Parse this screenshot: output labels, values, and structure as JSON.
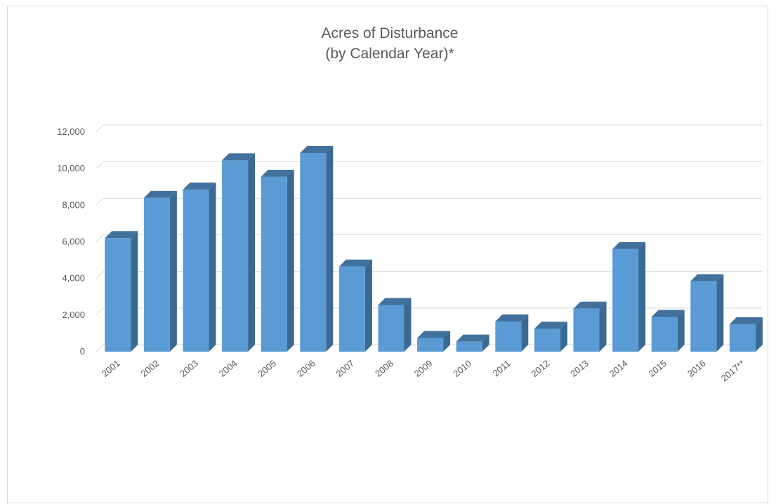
{
  "chart_data": {
    "type": "bar",
    "title": [
      "Acres of Disturbance",
      "(by Calendar Year)*"
    ],
    "categories": [
      "2001",
      "2002",
      "2003",
      "2004",
      "2005",
      "2006",
      "2007",
      "2008",
      "2009",
      "2010",
      "2011",
      "2012",
      "2013",
      "2014",
      "2015",
      "2016",
      "2017**"
    ],
    "values": [
      6200,
      8400,
      8850,
      10450,
      9550,
      10850,
      4650,
      2550,
      750,
      550,
      1650,
      1250,
      2350,
      5600,
      1900,
      3850,
      1500
    ],
    "ylim": [
      0,
      12000
    ],
    "yticks": [
      0,
      2000,
      4000,
      6000,
      8000,
      10000,
      12000
    ],
    "ytick_labels": [
      "0",
      "2,000",
      "4,000",
      "6,000",
      "8,000",
      "10,000",
      "12,000"
    ],
    "grid": true,
    "legend": "none",
    "style": "3d-column",
    "colors": {
      "front": "#5b9bd5",
      "top": "#41719c",
      "side": "#3a6a94",
      "grid": "#d9d9d9"
    }
  }
}
